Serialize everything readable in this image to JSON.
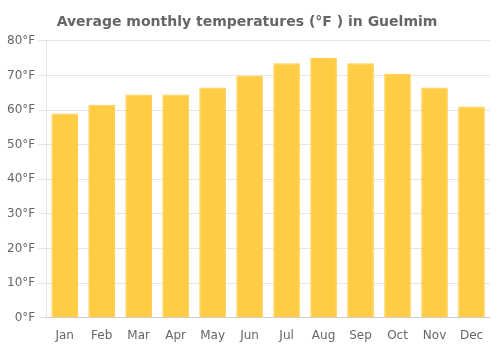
{
  "chart_data": {
    "type": "bar",
    "title": "Average monthly temperatures (°F ) in Guelmim",
    "categories": [
      "Jan",
      "Feb",
      "Mar",
      "Apr",
      "May",
      "Jun",
      "Jul",
      "Aug",
      "Sep",
      "Oct",
      "Nov",
      "Dec"
    ],
    "values": [
      59,
      61.5,
      64.5,
      64.5,
      66.5,
      70,
      73.5,
      75,
      73.5,
      70.5,
      66.5,
      61
    ],
    "color": "#FFCC44",
    "ylim": [
      0,
      80
    ],
    "yticks": [
      {
        "value": 0,
        "label": "0°F"
      },
      {
        "value": 10,
        "label": "10°F"
      },
      {
        "value": 20,
        "label": "20°F"
      },
      {
        "value": 30,
        "label": "30°F"
      },
      {
        "value": 40,
        "label": "40°F"
      },
      {
        "value": 50,
        "label": "50°F"
      },
      {
        "value": 60,
        "label": "60°F"
      },
      {
        "value": 70,
        "label": "70°F"
      },
      {
        "value": 80,
        "label": "80°F"
      }
    ],
    "grid": true
  }
}
